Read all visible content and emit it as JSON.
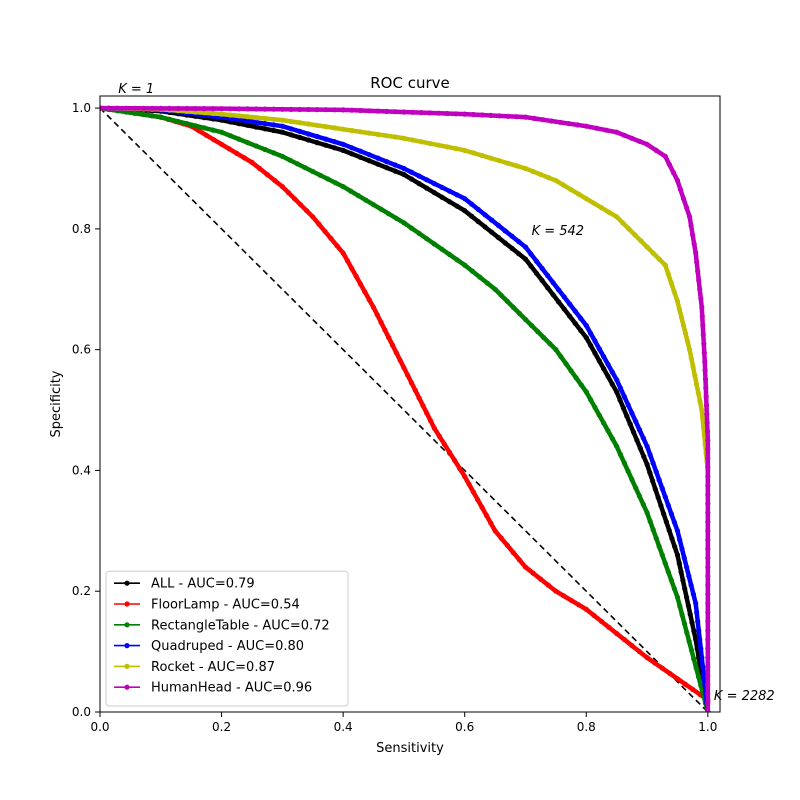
{
  "chart_data": {
    "type": "line",
    "title": "ROC curve",
    "xlabel": "Sensitivity",
    "ylabel": "Specificity",
    "xlim": [
      0,
      1.02
    ],
    "ylim": [
      0,
      1.02
    ],
    "xticks": [
      "0.0",
      "0.2",
      "0.4",
      "0.6",
      "0.8",
      "1.0"
    ],
    "yticks": [
      "0.0",
      "0.2",
      "0.4",
      "0.6",
      "0.8",
      "1.0"
    ],
    "grid": false,
    "legend_position": "lower-left",
    "reference_line": {
      "x": [
        0,
        1
      ],
      "y": [
        1,
        0
      ],
      "style": "dashed",
      "color": "#000000"
    },
    "annotations": [
      {
        "text": "K = 1",
        "x": 0.03,
        "y": 1.025
      },
      {
        "text": "K = 542",
        "x": 0.71,
        "y": 0.79
      },
      {
        "text": "K = 2282",
        "x": 1.01,
        "y": 0.02
      }
    ],
    "series": [
      {
        "name": "ALL - AUC=0.79",
        "color": "#000000",
        "x": [
          0,
          0.1,
          0.2,
          0.3,
          0.4,
          0.5,
          0.6,
          0.7,
          0.8,
          0.85,
          0.9,
          0.95,
          0.98,
          1.0
        ],
        "y": [
          1.0,
          0.995,
          0.98,
          0.96,
          0.93,
          0.89,
          0.83,
          0.75,
          0.62,
          0.53,
          0.41,
          0.26,
          0.12,
          0.0
        ]
      },
      {
        "name": "FloorLamp - AUC=0.54",
        "color": "#ff0000",
        "x": [
          0,
          0.1,
          0.15,
          0.2,
          0.25,
          0.3,
          0.35,
          0.4,
          0.45,
          0.5,
          0.55,
          0.6,
          0.65,
          0.7,
          0.75,
          0.8,
          0.85,
          0.9,
          0.95,
          1.0
        ],
        "y": [
          1.0,
          0.985,
          0.97,
          0.94,
          0.91,
          0.87,
          0.82,
          0.76,
          0.67,
          0.57,
          0.47,
          0.39,
          0.3,
          0.24,
          0.2,
          0.17,
          0.13,
          0.09,
          0.055,
          0.02
        ]
      },
      {
        "name": "RectangleTable - AUC=0.72",
        "color": "#008000",
        "x": [
          0,
          0.1,
          0.2,
          0.3,
          0.4,
          0.5,
          0.6,
          0.65,
          0.7,
          0.75,
          0.8,
          0.85,
          0.9,
          0.95,
          1.0
        ],
        "y": [
          1.0,
          0.985,
          0.96,
          0.92,
          0.87,
          0.81,
          0.74,
          0.7,
          0.65,
          0.6,
          0.53,
          0.44,
          0.33,
          0.19,
          0.0
        ]
      },
      {
        "name": "Quadruped - AUC=0.80",
        "color": "#0000ff",
        "x": [
          0,
          0.1,
          0.2,
          0.3,
          0.4,
          0.5,
          0.6,
          0.7,
          0.8,
          0.85,
          0.9,
          0.95,
          0.98,
          1.0
        ],
        "y": [
          1.0,
          0.997,
          0.985,
          0.97,
          0.94,
          0.9,
          0.85,
          0.77,
          0.64,
          0.55,
          0.44,
          0.3,
          0.18,
          0.0
        ]
      },
      {
        "name": "Rocket - AUC=0.87",
        "color": "#bfbf00",
        "x": [
          0,
          0.1,
          0.2,
          0.3,
          0.4,
          0.5,
          0.6,
          0.7,
          0.75,
          0.8,
          0.85,
          0.9,
          0.93,
          0.95,
          0.97,
          0.99,
          1.0
        ],
        "y": [
          1.0,
          0.998,
          0.99,
          0.98,
          0.965,
          0.95,
          0.93,
          0.9,
          0.88,
          0.85,
          0.82,
          0.77,
          0.74,
          0.68,
          0.6,
          0.5,
          0.4
        ]
      },
      {
        "name": "HumanHead - AUC=0.96",
        "color": "#bf00bf",
        "x": [
          0,
          0.2,
          0.4,
          0.6,
          0.7,
          0.8,
          0.85,
          0.9,
          0.93,
          0.95,
          0.97,
          0.98,
          0.99,
          0.995,
          1.0,
          1.0
        ],
        "y": [
          1.0,
          0.999,
          0.997,
          0.99,
          0.985,
          0.97,
          0.96,
          0.94,
          0.92,
          0.88,
          0.82,
          0.76,
          0.67,
          0.58,
          0.45,
          0.0
        ]
      }
    ]
  }
}
